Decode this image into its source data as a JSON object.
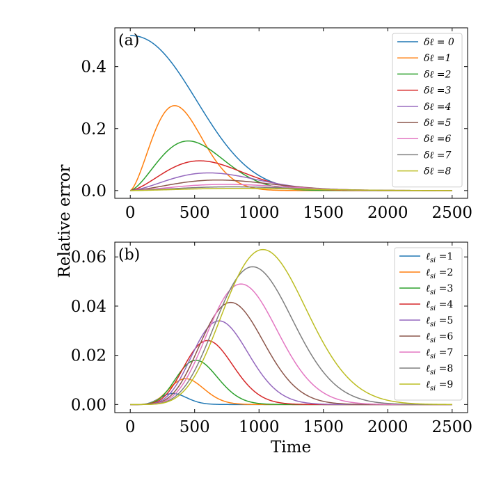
{
  "figure": {
    "ylabel": "Relative error",
    "xlabel": "Time"
  },
  "chart_data": [
    {
      "type": "line",
      "panel_label": "(a)",
      "xlim": [
        -120,
        2620
      ],
      "ylim": [
        -0.025,
        0.525
      ],
      "xticks": [
        0,
        500,
        1000,
        1500,
        2000,
        2500
      ],
      "xtick_labels": [
        "0",
        "500",
        "1000",
        "1500",
        "2000",
        "2500"
      ],
      "yticks": [
        0.0,
        0.2,
        0.4
      ],
      "ytick_labels": [
        "0.0",
        "0.2",
        "0.4"
      ],
      "legend_position": "top-right",
      "series": [
        {
          "name": "δℓ = 0",
          "color": "#1f77b4",
          "peak_time": 0,
          "peak_value": 0.5
        },
        {
          "name": "δℓ =1",
          "color": "#ff7f0e",
          "peak_time": 345,
          "peak_value": 0.274
        },
        {
          "name": "δℓ =2",
          "color": "#2ca02c",
          "peak_time": 450,
          "peak_value": 0.16
        },
        {
          "name": "δℓ =3",
          "color": "#d62728",
          "peak_time": 540,
          "peak_value": 0.096
        },
        {
          "name": "δℓ =4",
          "color": "#9467bd",
          "peak_time": 610,
          "peak_value": 0.057
        },
        {
          "name": "δℓ =5",
          "color": "#8c564b",
          "peak_time": 680,
          "peak_value": 0.034
        },
        {
          "name": "δℓ =6",
          "color": "#e377c2",
          "peak_time": 740,
          "peak_value": 0.02
        },
        {
          "name": "δℓ =7",
          "color": "#7f7f7f",
          "peak_time": 790,
          "peak_value": 0.012
        },
        {
          "name": "δℓ =8",
          "color": "#bcbd22",
          "peak_time": 840,
          "peak_value": 0.007
        }
      ]
    },
    {
      "type": "line",
      "panel_label": "(b)",
      "xlim": [
        -120,
        2620
      ],
      "ylim": [
        -0.0033,
        0.066
      ],
      "xticks": [
        0,
        500,
        1000,
        1500,
        2000,
        2500
      ],
      "xtick_labels": [
        "0",
        "500",
        "1000",
        "1500",
        "2000",
        "2500"
      ],
      "yticks": [
        0.0,
        0.02,
        0.04,
        0.06
      ],
      "ytick_labels": [
        "0.00",
        "0.02",
        "0.04",
        "0.06"
      ],
      "legend_position": "top-right",
      "series": [
        {
          "name": "ℓsi =1",
          "label_main": "ℓ",
          "label_sub": "si",
          "label_tail": " =1",
          "color": "#1f77b4",
          "peak_time": 330,
          "peak_value": 0.0045
        },
        {
          "name": "ℓsi =2",
          "label_main": "ℓ",
          "label_sub": "si",
          "label_tail": " =2",
          "color": "#ff7f0e",
          "peak_time": 430,
          "peak_value": 0.0105
        },
        {
          "name": "ℓsi =3",
          "label_main": "ℓ",
          "label_sub": "si",
          "label_tail": " =3",
          "color": "#2ca02c",
          "peak_time": 510,
          "peak_value": 0.018
        },
        {
          "name": "ℓsi =4",
          "label_main": "ℓ",
          "label_sub": "si",
          "label_tail": " =4",
          "color": "#d62728",
          "peak_time": 600,
          "peak_value": 0.026
        },
        {
          "name": "ℓsi =5",
          "label_main": "ℓ",
          "label_sub": "si",
          "label_tail": " =5",
          "color": "#9467bd",
          "peak_time": 690,
          "peak_value": 0.034
        },
        {
          "name": "ℓsi =6",
          "label_main": "ℓ",
          "label_sub": "si",
          "label_tail": " =6",
          "color": "#8c564b",
          "peak_time": 780,
          "peak_value": 0.0415
        },
        {
          "name": "ℓsi =7",
          "label_main": "ℓ",
          "label_sub": "si",
          "label_tail": " =7",
          "color": "#e377c2",
          "peak_time": 860,
          "peak_value": 0.049
        },
        {
          "name": "ℓsi =8",
          "label_main": "ℓ",
          "label_sub": "si",
          "label_tail": " =8",
          "color": "#7f7f7f",
          "peak_time": 950,
          "peak_value": 0.056
        },
        {
          "name": "ℓsi =9",
          "label_main": "ℓ",
          "label_sub": "si",
          "label_tail": " =9",
          "color": "#bcbd22",
          "peak_time": 1030,
          "peak_value": 0.063
        }
      ]
    }
  ]
}
